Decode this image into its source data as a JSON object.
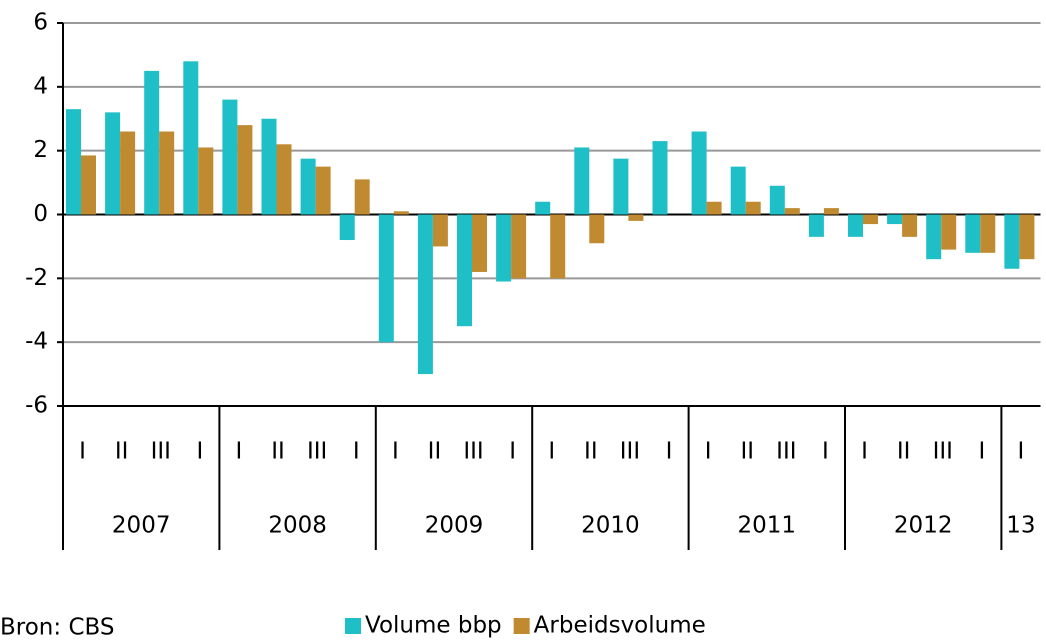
{
  "chart_data": {
    "type": "bar",
    "categories": [
      "I",
      "II",
      "III",
      "I",
      "I",
      "II",
      "III",
      "I",
      "I",
      "II",
      "III",
      "I",
      "I",
      "II",
      "III",
      "I",
      "I",
      "II",
      "III",
      "I",
      "I",
      "II",
      "III",
      "I",
      "I"
    ],
    "year_groups": [
      "2007",
      "2008",
      "2009",
      "2010",
      "2011",
      "2012",
      "13"
    ],
    "series": [
      {
        "name": "Volume bbp",
        "color": "#1fbfc8",
        "values": [
          3.3,
          3.2,
          4.5,
          4.8,
          3.6,
          3.0,
          1.75,
          -0.8,
          -4.0,
          -5.0,
          -3.5,
          -2.1,
          0.4,
          2.1,
          1.75,
          2.3,
          2.6,
          1.5,
          0.9,
          -0.7,
          -0.7,
          -0.3,
          -1.4,
          -1.2,
          -1.7
        ]
      },
      {
        "name": "Arbeidsvolume",
        "color": "#c08a30",
        "values": [
          1.85,
          2.6,
          2.6,
          2.1,
          2.8,
          2.2,
          1.5,
          1.1,
          0.1,
          -1.0,
          -1.8,
          -2.0,
          -2.0,
          -0.9,
          -0.2,
          0,
          0.4,
          0.4,
          0.2,
          0.2,
          -0.3,
          -0.7,
          -1.1,
          -1.2,
          -1.4
        ]
      }
    ],
    "ylim": [
      -6,
      6
    ],
    "yticks": [
      -6,
      -4,
      -2,
      0,
      2,
      4,
      6
    ],
    "grid": true,
    "source": "Bron: CBS"
  }
}
